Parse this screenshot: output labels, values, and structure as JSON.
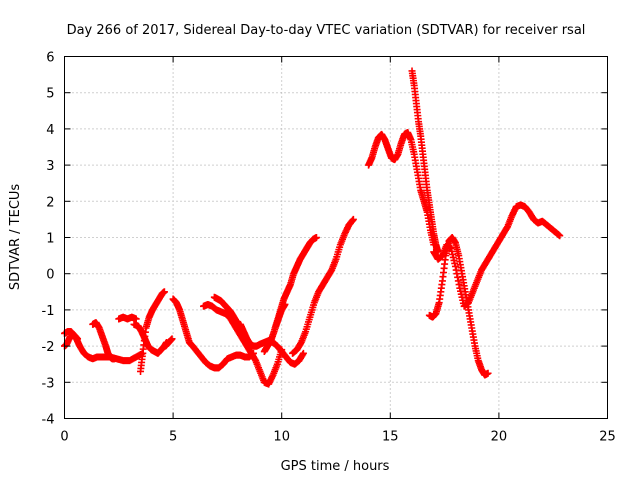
{
  "chart_data": {
    "type": "scatter",
    "title": "Day 266 of 2017, Sidereal Day-to-day VTEC variation (SDTVAR) for receiver rsal",
    "xlabel": "GPS time / hours",
    "ylabel": "SDTVAR / TECUs",
    "xlim": [
      0,
      25
    ],
    "ylim": [
      -4,
      6
    ],
    "xticks": [
      "0",
      "5",
      "10",
      "15",
      "20",
      "25"
    ],
    "yticks": [
      "-4",
      "-3",
      "-2",
      "-1",
      "0",
      "1",
      "2",
      "3",
      "4",
      "5",
      "6"
    ],
    "grid": true,
    "legend": "none",
    "marker": "+",
    "color": "#ff0000",
    "series": [
      {
        "x": [
          0.0,
          0.1,
          0.25,
          0.4,
          0.55,
          0.7,
          0.9,
          1.1,
          1.3,
          1.5,
          1.8,
          2.1,
          2.4,
          2.7,
          3.0,
          3.3,
          3.6
        ],
        "y": [
          -2.0,
          -1.95,
          -1.75,
          -1.7,
          -1.8,
          -2.0,
          -2.2,
          -2.3,
          -2.35,
          -2.3,
          -2.3,
          -2.3,
          -2.35,
          -2.4,
          -2.4,
          -2.3,
          -2.2
        ]
      },
      {
        "x": [
          0.0,
          0.15,
          0.3,
          0.45,
          0.6
        ],
        "y": [
          -1.65,
          -1.6,
          -1.6,
          -1.7,
          -1.8
        ]
      },
      {
        "x": [
          1.3,
          1.45,
          1.6,
          1.75,
          1.9,
          2.0,
          2.1,
          2.2,
          2.3
        ],
        "y": [
          -1.4,
          -1.35,
          -1.5,
          -1.75,
          -2.0,
          -2.2,
          -2.3,
          -2.35,
          -2.35
        ]
      },
      {
        "x": [
          2.5,
          2.7,
          2.9,
          3.1,
          3.3
        ],
        "y": [
          -1.25,
          -1.2,
          -1.25,
          -1.2,
          -1.25
        ]
      },
      {
        "x": [
          3.2,
          3.4,
          3.55,
          3.7,
          3.85,
          4.0,
          4.15,
          4.3,
          4.45,
          4.6,
          4.7
        ],
        "y": [
          -1.4,
          -1.45,
          -1.6,
          -1.8,
          -2.0,
          -2.1,
          -2.15,
          -2.2,
          -2.1,
          -2.0,
          -1.9
        ]
      },
      {
        "x": [
          3.5,
          3.6,
          3.75,
          3.9,
          4.05,
          4.2,
          4.35,
          4.5,
          4.6
        ],
        "y": [
          -2.7,
          -2.2,
          -1.5,
          -1.2,
          -1.0,
          -0.85,
          -0.7,
          -0.55,
          -0.5
        ]
      },
      {
        "x": [
          4.65,
          4.8,
          4.95
        ],
        "y": [
          -2.0,
          -1.9,
          -1.8
        ]
      },
      {
        "x": [
          5.0,
          5.15,
          5.3,
          5.45,
          5.6,
          5.75,
          5.9,
          6.1,
          6.3,
          6.5,
          6.7,
          6.9,
          7.1,
          7.3,
          7.5,
          7.7,
          7.9,
          8.1,
          8.3,
          8.5,
          8.7
        ],
        "y": [
          -0.7,
          -0.8,
          -1.0,
          -1.3,
          -1.6,
          -1.9,
          -2.0,
          -2.15,
          -2.3,
          -2.45,
          -2.55,
          -2.6,
          -2.6,
          -2.5,
          -2.35,
          -2.3,
          -2.25,
          -2.25,
          -2.3,
          -2.3,
          -2.2
        ]
      },
      {
        "x": [
          6.4,
          6.6,
          6.8,
          7.0,
          7.2,
          7.4,
          7.6,
          7.8,
          8.0,
          8.2,
          8.4,
          8.6,
          8.8,
          9.0,
          9.2,
          9.4,
          9.6,
          9.8,
          10.0
        ],
        "y": [
          -0.9,
          -0.85,
          -0.9,
          -1.0,
          -1.05,
          -1.1,
          -1.2,
          -1.4,
          -1.6,
          -1.8,
          -2.0,
          -2.2,
          -2.4,
          -2.7,
          -3.0,
          -3.05,
          -2.8,
          -2.5,
          -2.1
        ]
      },
      {
        "x": [
          6.9,
          7.05,
          7.2,
          7.35,
          7.5,
          7.65,
          7.8,
          7.95,
          8.1
        ],
        "y": [
          -0.65,
          -0.7,
          -0.75,
          -0.85,
          -0.95,
          -1.05,
          -1.2,
          -1.35,
          -1.5
        ]
      },
      {
        "x": [
          8.1,
          8.25,
          8.4,
          8.55,
          8.7,
          8.85,
          9.0,
          9.2,
          9.4,
          9.6,
          9.8,
          10.0,
          10.2,
          10.4,
          10.6,
          10.8,
          11.0
        ],
        "y": [
          -1.4,
          -1.6,
          -1.8,
          -1.95,
          -2.0,
          -2.0,
          -1.95,
          -1.9,
          -1.85,
          -1.9,
          -2.0,
          -2.15,
          -2.3,
          -2.45,
          -2.5,
          -2.4,
          -2.2
        ]
      },
      {
        "x": [
          9.2,
          9.35,
          9.5,
          9.65,
          9.8,
          9.95,
          10.1,
          10.25,
          10.4,
          10.55,
          10.7,
          10.85,
          11.0,
          11.15,
          11.3,
          11.45,
          11.6
        ],
        "y": [
          -2.15,
          -2.0,
          -1.85,
          -1.6,
          -1.3,
          -1.0,
          -0.7,
          -0.5,
          -0.3,
          0.0,
          0.2,
          0.4,
          0.55,
          0.7,
          0.85,
          0.95,
          1.0
        ]
      },
      {
        "x": [
          9.7,
          9.85,
          10.0,
          10.15
        ],
        "y": [
          -1.5,
          -1.25,
          -1.0,
          -0.85
        ]
      },
      {
        "x": [
          10.5,
          10.7,
          10.9,
          11.1,
          11.3,
          11.5,
          11.7,
          11.9,
          12.1,
          12.3,
          12.5,
          12.7,
          12.9,
          13.1,
          13.3
        ],
        "y": [
          -2.2,
          -2.1,
          -1.9,
          -1.6,
          -1.2,
          -0.8,
          -0.5,
          -0.3,
          -0.1,
          0.1,
          0.4,
          0.8,
          1.1,
          1.35,
          1.5
        ]
      },
      {
        "x": [
          14.0,
          14.15,
          14.3,
          14.45,
          14.6,
          14.75,
          14.9,
          15.05,
          15.2,
          15.35,
          15.5,
          15.65,
          15.8,
          15.95,
          16.1,
          16.25,
          16.4,
          16.55,
          16.7,
          16.85,
          17.0
        ],
        "y": [
          3.0,
          3.2,
          3.5,
          3.75,
          3.85,
          3.7,
          3.45,
          3.2,
          3.15,
          3.3,
          3.6,
          3.85,
          3.9,
          3.7,
          3.3,
          2.8,
          2.3,
          2.0,
          1.7,
          1.2,
          0.8
        ]
      },
      {
        "x": [
          16.0,
          16.1,
          16.2,
          16.3,
          16.4,
          16.5,
          16.6,
          16.7,
          16.8,
          16.9,
          17.0,
          17.1,
          17.2
        ],
        "y": [
          5.6,
          5.2,
          4.7,
          4.2,
          3.8,
          3.3,
          2.8,
          2.3,
          1.9,
          1.5,
          1.1,
          0.8,
          0.6
        ]
      },
      {
        "x": [
          16.8,
          16.95,
          17.1,
          17.25,
          17.4,
          17.55,
          17.7,
          17.85,
          18.0,
          18.15,
          18.3,
          18.45,
          18.6,
          18.75,
          18.9,
          19.05,
          19.2,
          19.35,
          19.5
        ],
        "y": [
          -1.15,
          -1.2,
          -1.1,
          -0.8,
          -0.2,
          0.5,
          0.9,
          1.0,
          0.85,
          0.5,
          0.0,
          -0.5,
          -1.0,
          -1.5,
          -2.0,
          -2.4,
          -2.65,
          -2.8,
          -2.75
        ]
      },
      {
        "x": [
          17.0,
          17.2,
          17.4,
          17.6,
          17.8,
          18.0,
          18.2,
          18.4,
          18.6,
          18.8,
          19.0,
          19.2,
          19.4,
          19.6,
          19.8,
          20.0,
          20.2,
          20.4,
          20.6,
          20.8,
          21.0,
          21.2,
          21.4,
          21.6,
          21.8,
          22.0,
          22.2,
          22.4,
          22.6,
          22.8
        ],
        "y": [
          0.6,
          0.4,
          0.5,
          0.8,
          0.7,
          0.2,
          -0.4,
          -0.9,
          -0.8,
          -0.5,
          -0.2,
          0.1,
          0.3,
          0.5,
          0.7,
          0.9,
          1.1,
          1.3,
          1.6,
          1.85,
          1.9,
          1.85,
          1.7,
          1.5,
          1.4,
          1.45,
          1.35,
          1.25,
          1.15,
          1.05
        ]
      }
    ]
  }
}
